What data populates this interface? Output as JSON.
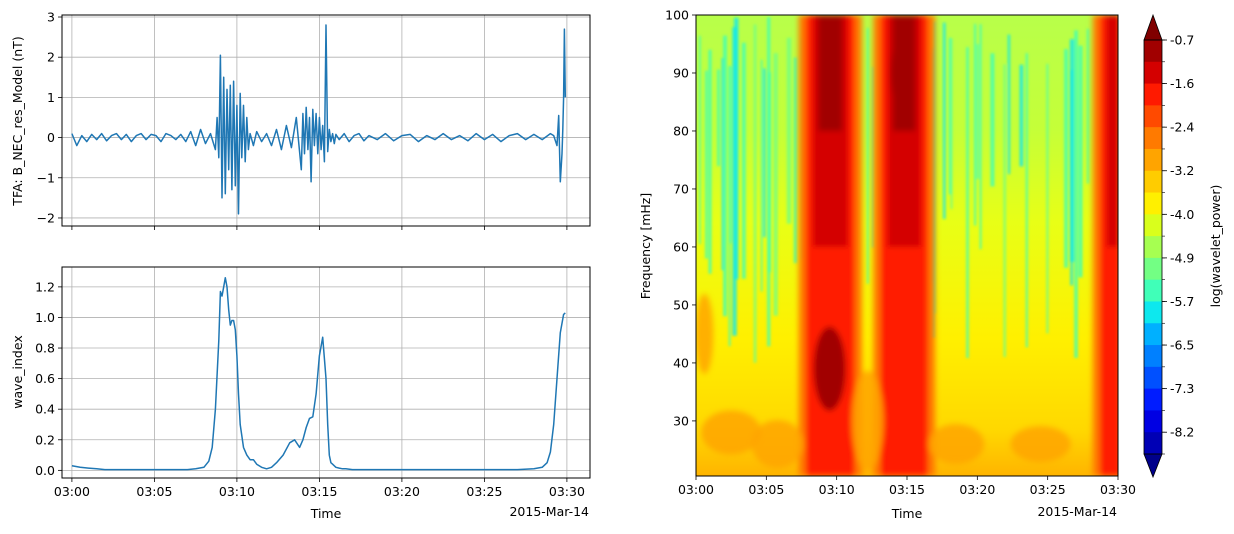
{
  "chart_data": [
    {
      "type": "line",
      "ylabel": "TFA: B_NEC_res_Model (nT)",
      "ylim": [
        -2.2,
        3.05
      ],
      "yticks": [
        "3",
        "2",
        "1",
        "0",
        "−1",
        "−2"
      ],
      "ytick_values": [
        3,
        2,
        1,
        0,
        -1,
        -2
      ],
      "xlim_minutes": [
        -0.6,
        31.4
      ],
      "xtick_values": [
        0,
        5,
        10,
        15,
        20,
        25,
        30
      ],
      "grid": true,
      "color": "#1f77b4",
      "series": [
        {
          "x": [
            0,
            0.3,
            0.6,
            0.9,
            1.2,
            1.5,
            1.8,
            2.1,
            2.4,
            2.7,
            3,
            3.3,
            3.6,
            3.9,
            4.2,
            4.5,
            4.8,
            5.1,
            5.4,
            5.7,
            6,
            6.3,
            6.6,
            6.9,
            7.2,
            7.5,
            7.8,
            8.1,
            8.4,
            8.7,
            8.8,
            8.9,
            9.0,
            9.1,
            9.2,
            9.3,
            9.4,
            9.5,
            9.6,
            9.7,
            9.8,
            9.9,
            10.0,
            10.1,
            10.2,
            10.3,
            10.4,
            10.5,
            10.6,
            10.7,
            10.8,
            11.0,
            11.2,
            11.5,
            11.8,
            12.1,
            12.4,
            12.7,
            13.0,
            13.3,
            13.6,
            13.9,
            14.0,
            14.1,
            14.2,
            14.3,
            14.4,
            14.5,
            14.6,
            14.7,
            14.8,
            14.9,
            15.0,
            15.1,
            15.2,
            15.3,
            15.4,
            15.5,
            15.6,
            15.7,
            15.8,
            15.9,
            16.0,
            16.2,
            16.5,
            16.8,
            17.1,
            17.4,
            17.7,
            18,
            18.5,
            19,
            19.5,
            20,
            20.5,
            21,
            21.5,
            22,
            22.5,
            23,
            23.5,
            24,
            24.5,
            25,
            25.5,
            26,
            26.5,
            27,
            27.5,
            28,
            28.5,
            29,
            29.2,
            29.4,
            29.5,
            29.6,
            29.7,
            29.75,
            29.8,
            29.85,
            29.9
          ],
          "y": [
            0.1,
            -0.2,
            0.05,
            -0.1,
            0.08,
            -0.05,
            0.1,
            -0.08,
            0.05,
            0.1,
            -0.05,
            0.08,
            -0.1,
            0.05,
            0.1,
            -0.05,
            0.08,
            0.05,
            -0.1,
            0.1,
            0.05,
            -0.05,
            0.08,
            -0.1,
            0.15,
            -0.2,
            0.2,
            -0.15,
            0.1,
            -0.3,
            0.5,
            -0.5,
            2.05,
            -1.5,
            1.5,
            -1.4,
            1.2,
            -0.8,
            1.3,
            -1.3,
            1.4,
            -1.2,
            0.8,
            -1.9,
            1.1,
            -0.5,
            0.8,
            -0.6,
            0.5,
            -0.3,
            0.1,
            -0.2,
            0.15,
            -0.1,
            0.1,
            -0.2,
            0.2,
            -0.3,
            0.3,
            -0.25,
            0.5,
            -0.8,
            0.6,
            -0.4,
            0.75,
            -0.3,
            0.5,
            -1.1,
            0.7,
            -0.2,
            0.6,
            -0.4,
            0.5,
            -0.3,
            0.3,
            -0.6,
            2.8,
            -0.35,
            0.2,
            -0.1,
            0.1,
            -0.15,
            0.08,
            -0.05,
            0.1,
            -0.1,
            0.05,
            0.1,
            -0.08,
            0.05,
            -0.05,
            0.1,
            -0.08,
            0.05,
            0.08,
            -0.1,
            0.05,
            -0.05,
            0.1,
            -0.05,
            0.05,
            -0.08,
            0.1,
            -0.05,
            0.08,
            -0.1,
            0.05,
            0.1,
            -0.05,
            0.08,
            -0.05,
            0.1,
            0.05,
            -0.2,
            0.55,
            -1.1,
            -0.4,
            0.2,
            1.0,
            2.7,
            1.0
          ]
        }
      ]
    },
    {
      "type": "line",
      "ylabel": "wave_index",
      "xlabel": "Time",
      "date_label": "2015-Mar-14",
      "ylim": [
        -0.05,
        1.33
      ],
      "yticks": [
        "1.2",
        "1.0",
        "0.8",
        "0.6",
        "0.4",
        "0.2",
        "0.0"
      ],
      "ytick_values": [
        1.2,
        1.0,
        0.8,
        0.6,
        0.4,
        0.2,
        0.0
      ],
      "xlim_minutes": [
        -0.6,
        31.4
      ],
      "xtick_values": [
        0,
        5,
        10,
        15,
        20,
        25,
        30
      ],
      "xtick_labels": [
        "03:00",
        "03:05",
        "03:10",
        "03:15",
        "03:20",
        "03:25",
        "03:30"
      ],
      "grid": true,
      "color": "#1f77b4",
      "series": [
        {
          "x": [
            0,
            0.5,
            1,
            1.5,
            2,
            3,
            4,
            5,
            6,
            7,
            7.5,
            8,
            8.3,
            8.5,
            8.7,
            8.9,
            9.0,
            9.1,
            9.2,
            9.3,
            9.4,
            9.5,
            9.6,
            9.7,
            9.8,
            9.9,
            10.0,
            10.1,
            10.2,
            10.4,
            10.6,
            10.8,
            11.0,
            11.2,
            11.5,
            11.8,
            12.1,
            12.4,
            12.8,
            13.2,
            13.5,
            13.8,
            14.0,
            14.2,
            14.4,
            14.6,
            14.8,
            15.0,
            15.2,
            15.4,
            15.5,
            15.6,
            15.7,
            15.8,
            15.9,
            16.0,
            16.2,
            16.4,
            16.6,
            17,
            17.5,
            18,
            19,
            20,
            21,
            22,
            23,
            24,
            25,
            26,
            27,
            28,
            28.5,
            28.8,
            29.0,
            29.2,
            29.4,
            29.6,
            29.8,
            29.9
          ],
          "y": [
            0.03,
            0.02,
            0.015,
            0.01,
            0.005,
            0.005,
            0.005,
            0.005,
            0.005,
            0.005,
            0.01,
            0.02,
            0.06,
            0.15,
            0.4,
            0.85,
            1.17,
            1.14,
            1.2,
            1.26,
            1.2,
            1.05,
            0.95,
            0.98,
            0.98,
            0.92,
            0.75,
            0.5,
            0.3,
            0.15,
            0.1,
            0.07,
            0.07,
            0.04,
            0.02,
            0.01,
            0.02,
            0.05,
            0.1,
            0.18,
            0.2,
            0.15,
            0.2,
            0.28,
            0.34,
            0.35,
            0.5,
            0.75,
            0.87,
            0.6,
            0.3,
            0.1,
            0.05,
            0.04,
            0.03,
            0.02,
            0.015,
            0.01,
            0.01,
            0.005,
            0.005,
            0.005,
            0.005,
            0.005,
            0.005,
            0.005,
            0.005,
            0.005,
            0.005,
            0.005,
            0.005,
            0.01,
            0.02,
            0.05,
            0.12,
            0.3,
            0.6,
            0.9,
            1.02,
            1.03
          ]
        }
      ]
    },
    {
      "type": "heatmap",
      "ylabel": "Frequency [mHz]",
      "xlabel": "Time",
      "date_label": "2015-Mar-14",
      "ylim": [
        20.5,
        100
      ],
      "yticks": [
        "100",
        "90",
        "80",
        "70",
        "60",
        "50",
        "40",
        "30"
      ],
      "ytick_values": [
        100,
        90,
        80,
        70,
        60,
        50,
        40,
        30
      ],
      "xlim_minutes": [
        0,
        30
      ],
      "xtick_values": [
        0,
        5,
        10,
        15,
        20,
        25,
        30
      ],
      "xtick_labels": [
        "03:00",
        "03:05",
        "03:10",
        "03:15",
        "03:20",
        "03:25",
        "03:30"
      ],
      "colorbar_label": "log(wavelet_power)",
      "colorbar_ticks": [
        "-0.7",
        "-1.6",
        "-2.4",
        "-3.2",
        "-4.0",
        "-4.9",
        "-5.7",
        "-6.5",
        "-7.3",
        "-8.2"
      ],
      "colorbar_colors": [
        "#a10000",
        "#d40000",
        "#ff1a00",
        "#ff4a00",
        "#ff7a00",
        "#ffa400",
        "#ffcc00",
        "#fff000",
        "#d9ff1c",
        "#a6ff51",
        "#73ff84",
        "#40ffb8",
        "#0de8ee",
        "#00b0ff",
        "#0080ff",
        "#0050ff",
        "#001cff",
        "#0000e3",
        "#0000b5"
      ],
      "strong_bands_minutes": [
        [
          8.3,
          10.8
        ],
        [
          13.6,
          16.0
        ],
        [
          29.2,
          30.0
        ]
      ]
    }
  ]
}
